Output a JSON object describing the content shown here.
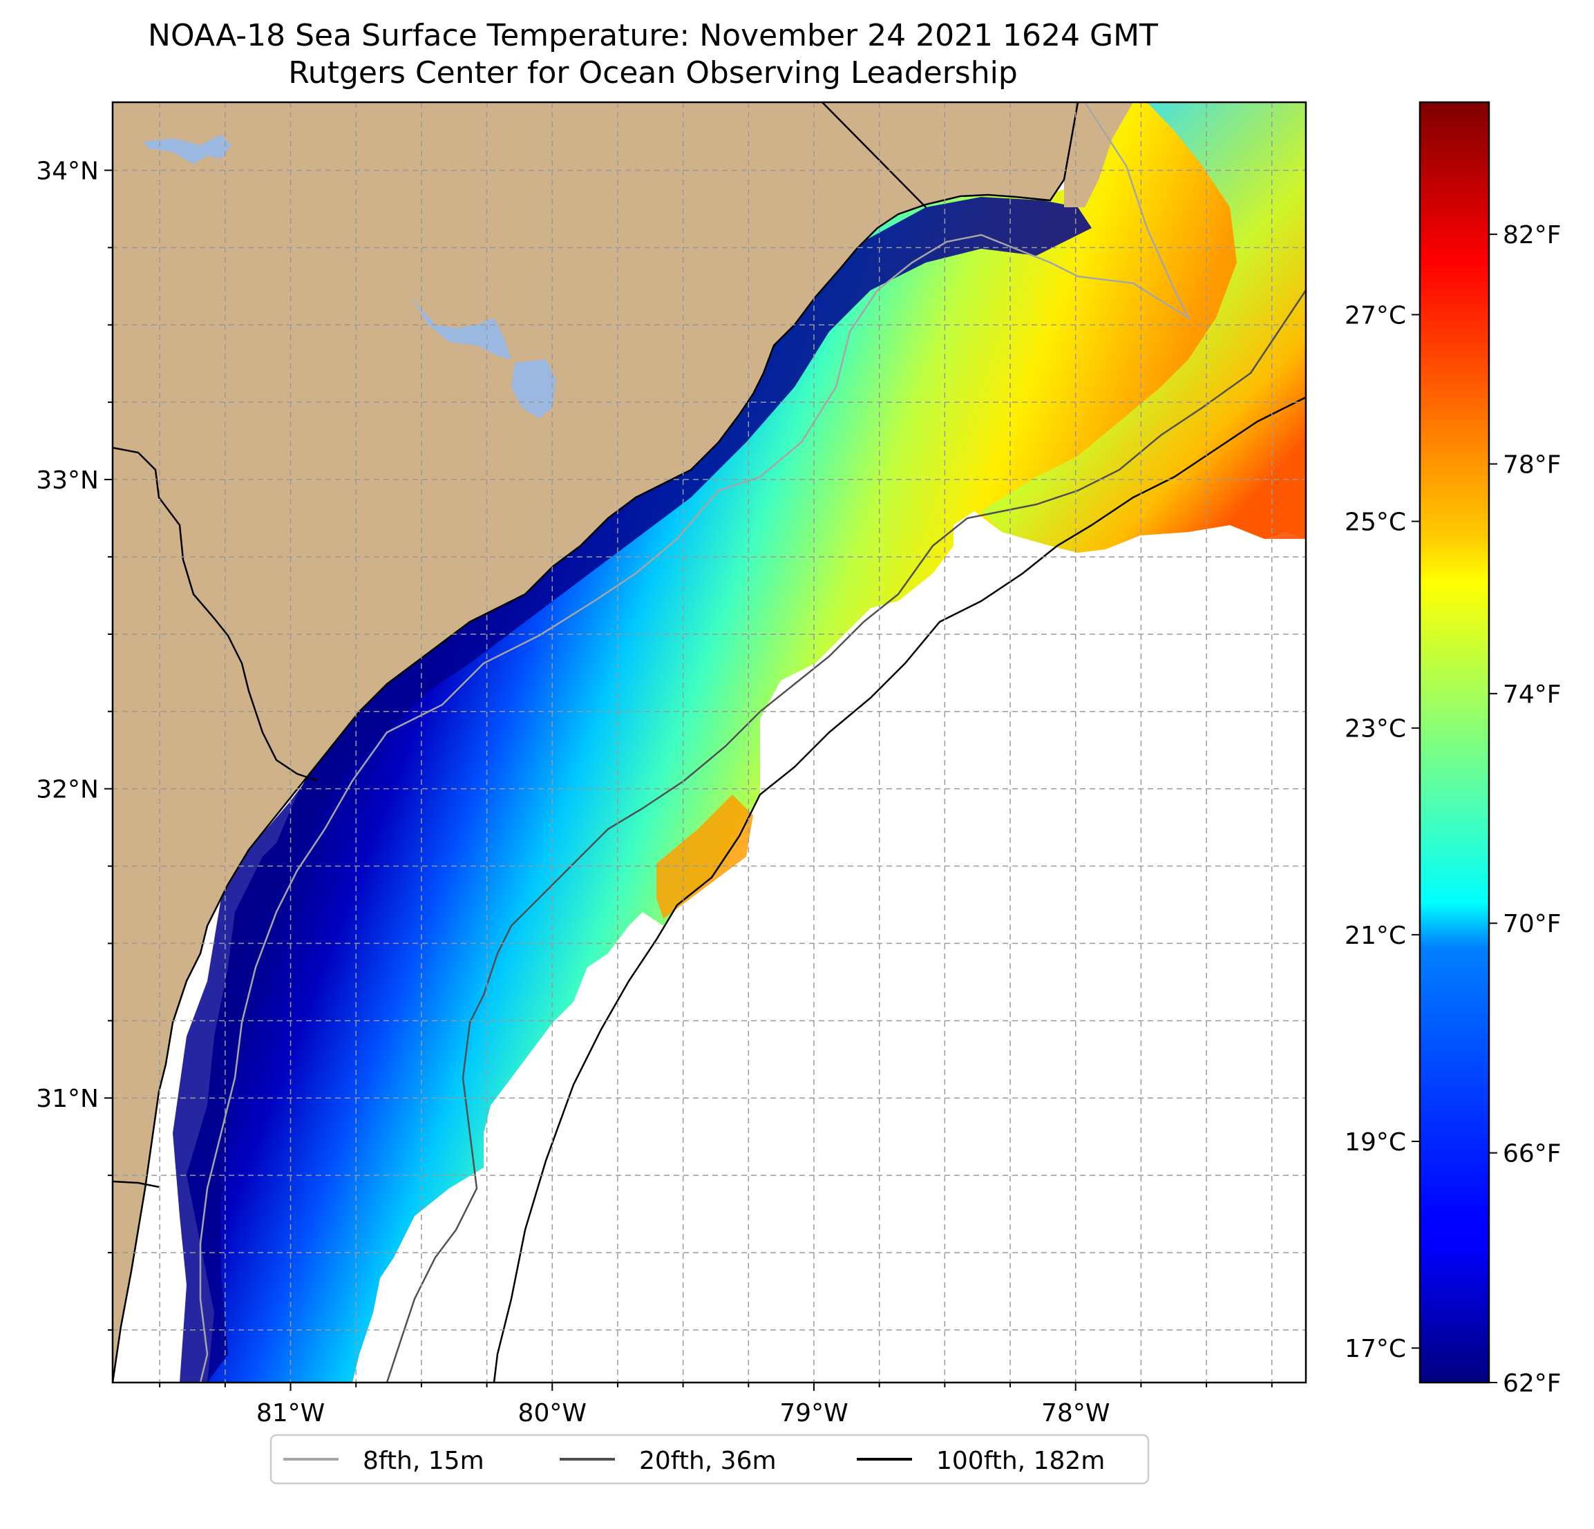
{
  "title": {
    "line1": "NOAA-18 Sea Surface Temperature: November 24 2021 1624 GMT",
    "line2": "Rutgers Center for Ocean Observing Leadership"
  },
  "map": {
    "lon_range": [
      -81.68,
      -77.12
    ],
    "lat_range": [
      30.08,
      34.22
    ],
    "lon_ticks": [
      {
        "value": -81,
        "label": "81°W"
      },
      {
        "value": -80,
        "label": "80°W"
      },
      {
        "value": -79,
        "label": "79°W"
      },
      {
        "value": -78,
        "label": "78°W"
      }
    ],
    "lat_ticks": [
      {
        "value": 31,
        "label": "31°N"
      },
      {
        "value": 32,
        "label": "32°N"
      },
      {
        "value": 33,
        "label": "33°N"
      },
      {
        "value": 34,
        "label": "34°N"
      }
    ],
    "gridlines": true,
    "land_color": "#cfb28a",
    "lake_color": "#9ab8e0",
    "no_data_color": "#ffffff"
  },
  "colorbar": {
    "range_f": [
      62,
      84.3
    ],
    "colormap": "jet",
    "fahrenheit_ticks": [
      {
        "value": 62,
        "label": "62°F"
      },
      {
        "value": 66,
        "label": "66°F"
      },
      {
        "value": 70,
        "label": "70°F"
      },
      {
        "value": 74,
        "label": "74°F"
      },
      {
        "value": 78,
        "label": "78°F"
      },
      {
        "value": 82,
        "label": "82°F"
      }
    ],
    "celsius_ticks": [
      {
        "value": 17,
        "label": "17°C"
      },
      {
        "value": 19,
        "label": "19°C"
      },
      {
        "value": 21,
        "label": "21°C"
      },
      {
        "value": 23,
        "label": "23°C"
      },
      {
        "value": 25,
        "label": "25°C"
      },
      {
        "value": 27,
        "label": "27°C"
      }
    ]
  },
  "legend": {
    "placement": "bottom-center",
    "items": [
      {
        "label": "8fth, 15m",
        "color": "#a6a6a6"
      },
      {
        "label": "20fth, 36m",
        "color": "#505050"
      },
      {
        "label": "100fth, 182m",
        "color": "#000000"
      }
    ]
  }
}
